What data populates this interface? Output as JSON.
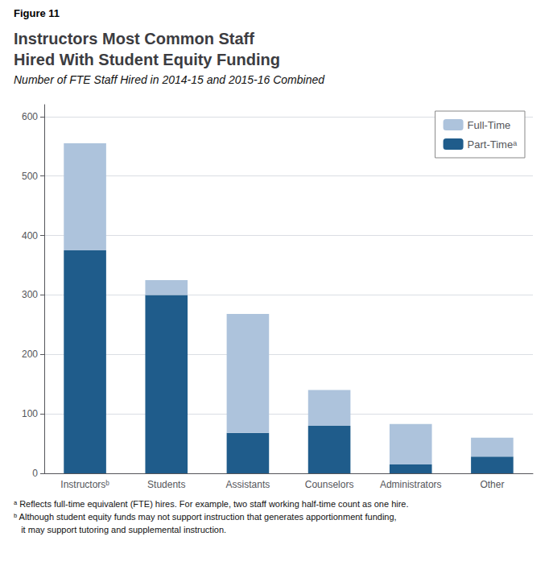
{
  "chart_data": {
    "type": "bar",
    "title": "Instructors Most Common Staff\nHired With Student Equity Funding",
    "subtitle": "Number of FTE Staff Hired in 2014-15 and 2015-16 Combined",
    "annotations": [
      "Figure 11",
      "ᵃ Reflects full-time equivalent (FTE) hires. For example, two staff working half-time count as one hire.",
      "ᵇ Although student equity funds may not support instruction that generates apportionment funding,",
      "   it may support tutoring and supplemental instruction."
    ],
    "categories": [
      "Instructorsᵇ",
      "Students",
      "Assistants",
      "Counselors",
      "Administrators",
      "Other"
    ],
    "series": [
      {
        "name": "Part-Timeᵃ",
        "color": "#1F5C8B",
        "values": [
          375,
          300,
          68,
          80,
          15,
          28
        ]
      },
      {
        "name": "Full-Time",
        "color": "#ADC3DC",
        "values": [
          180,
          25,
          200,
          60,
          68,
          32
        ]
      }
    ],
    "stacked": true,
    "ylim": [
      0,
      620
    ],
    "yticks": [
      0,
      100,
      200,
      300,
      400,
      500,
      600
    ],
    "grid": true,
    "legend": "upper right"
  }
}
